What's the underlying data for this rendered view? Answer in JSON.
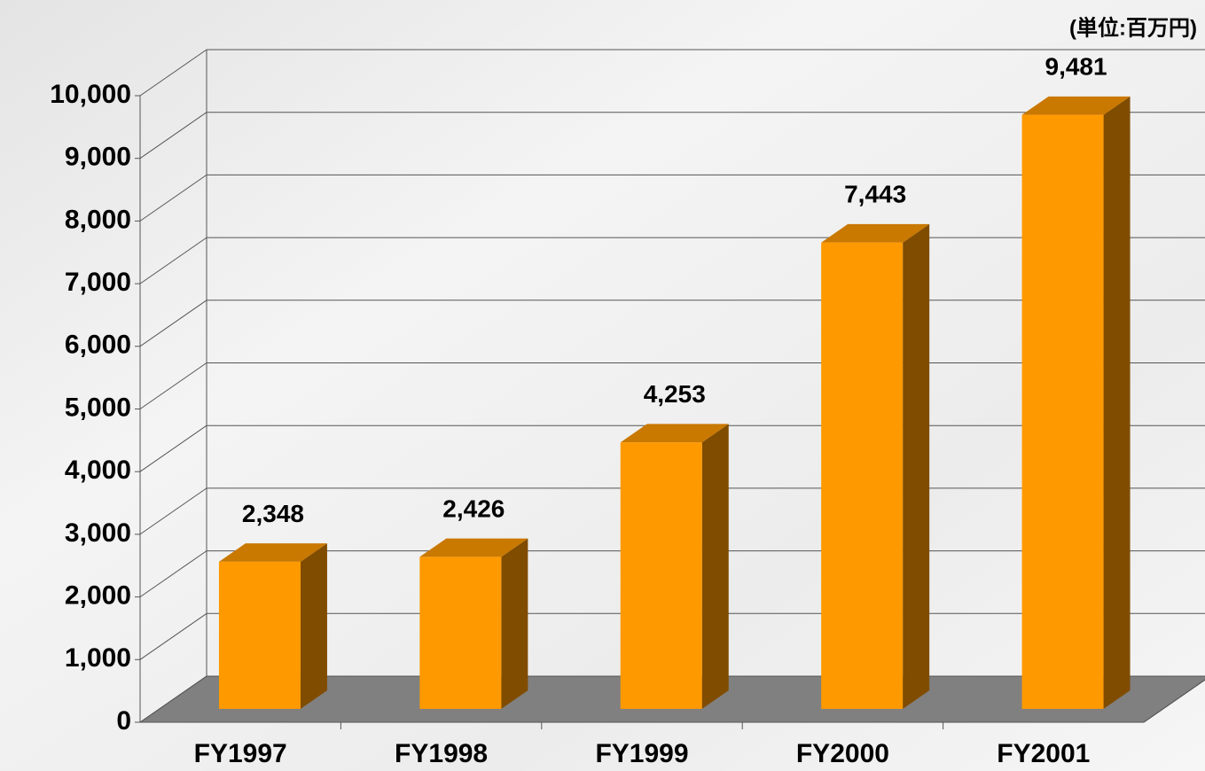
{
  "chart_data": {
    "type": "bar3d",
    "annotation": "(単位:百万円)",
    "categories": [
      "FY1997",
      "FY1998",
      "FY1999",
      "FY2000",
      "FY2001"
    ],
    "values": [
      2348,
      2426,
      4253,
      7443,
      9481
    ],
    "value_labels": [
      "2,348",
      "2,426",
      "4,253",
      "7,443",
      "9,481"
    ],
    "color": "#ff9900",
    "ylim": [
      0,
      10000
    ],
    "yticks": [
      0,
      {
        "value": 1000,
        "label": "1,000"
      },
      {
        "value": 2000,
        "label": "2,000"
      },
      {
        "value": 3000,
        "label": "3,000"
      },
      {
        "value": 4000,
        "label": "4,000"
      },
      {
        "value": 5000,
        "label": "5,000"
      },
      {
        "value": 6000,
        "label": "6,000"
      },
      {
        "value": 7000,
        "label": "7,000"
      },
      {
        "value": 8000,
        "label": "8,000"
      },
      {
        "value": 9000,
        "label": "9,000"
      },
      {
        "value": 10000,
        "label": "10,000"
      }
    ],
    "grid": true
  }
}
